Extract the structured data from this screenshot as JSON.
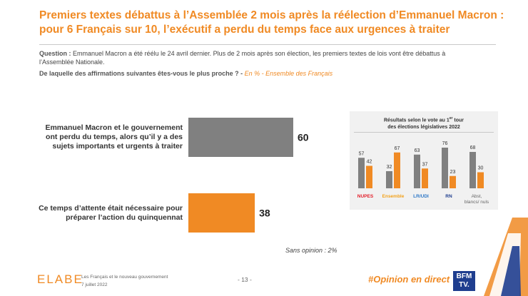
{
  "title": {
    "line1": "Premiers textes débattus à l’Assemblée 2 mois après la réélection d’Emmanuel Macron :",
    "line2": "pour 6 Français sur 10, l’exécutif a perdu du temps face aux urgences à traiter"
  },
  "question": {
    "label": "Question :",
    "line1": "Emmanuel Macron a été réélu le 24 avril dernier. Plus de 2 mois après son élection, les premiers textes de lois vont être débattus à",
    "line2": "l’Assemblée Nationale.",
    "prompt": "De laquelle des affirmations suivantes êtes-vous le plus proche ? -",
    "scope": "En % - Ensemble des Français"
  },
  "no_opinion": "Sans opinion : 2%",
  "colors": {
    "accent": "#f08a24",
    "gray_bar": "#808080",
    "orange_bar": "#f08a24",
    "nupes": "#e3202b",
    "ensemble": "#f2a21b",
    "lr": "#2e78c7",
    "rn": "#1f3e8f",
    "abst": "#666666"
  },
  "chart_data": [
    {
      "type": "bar",
      "orientation": "horizontal",
      "categories": [
        [
          "Emmanuel Macron et le gouvernement",
          "ont perdu du temps, alors qu’il y a des",
          "sujets importants et urgents à traiter"
        ],
        [
          "Ce temps d’attente était nécessaire pour",
          "préparer l’action du quinquennat"
        ]
      ],
      "values": [
        60,
        38
      ],
      "value_labels": [
        "60",
        "38"
      ],
      "bar_colors": [
        "#808080",
        "#f08a24"
      ],
      "xlim": [
        0,
        60
      ]
    },
    {
      "type": "bar",
      "title_line1": "Résultats selon le vote au 1",
      "title_sup": "er",
      "title_line1_end": " tour",
      "title_line2": "des élections législatives 2022",
      "categories": [
        "NUPES",
        "Ensemble",
        "LR/UDI",
        "RN",
        "Abst, blancs/nuls"
      ],
      "category_lines": [
        [
          "NUPES"
        ],
        [
          "Ensemble"
        ],
        [
          "LR/UDI"
        ],
        [
          "RN"
        ],
        [
          "Abst,",
          "blancs/ nuls"
        ]
      ],
      "category_colors": [
        "#e3202b",
        "#f2a21b",
        "#2e78c7",
        "#1f3e8f",
        "#666666"
      ],
      "series": [
        {
          "values": [
            57,
            32,
            63,
            76,
            68
          ],
          "color": "#808080"
        },
        {
          "values": [
            42,
            67,
            37,
            23,
            30
          ],
          "color": "#f08a24"
        }
      ],
      "ylim": [
        0,
        80
      ]
    }
  ],
  "footer": {
    "logo": "ELABE",
    "subtitle": "Les Français et le nouveau gouvernement",
    "date": "7 juillet 2022",
    "page": "- 13 -",
    "hashtag": "#Opinion en direct",
    "tv_line1": "BFM",
    "tv_line2": "TV."
  }
}
